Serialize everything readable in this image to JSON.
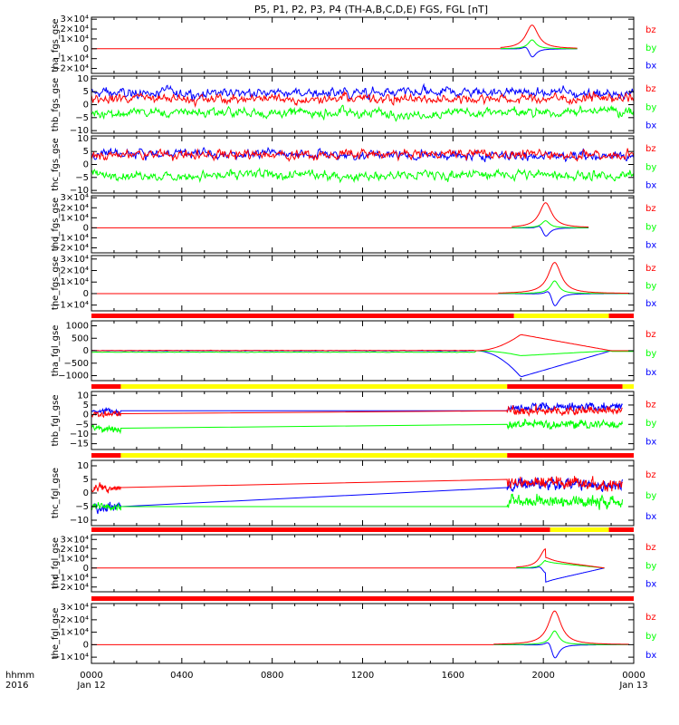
{
  "title": "P5, P1, P2, P3, P4 (TH-A,B,C,D,E) FGS, FGL [nT]",
  "time_axis": {
    "row1_label": "hhmm",
    "row2_label": "2016",
    "ticks": [
      {
        "hour": 0,
        "top": "0000",
        "bottom": "Jan 12"
      },
      {
        "hour": 4,
        "top": "0400",
        "bottom": ""
      },
      {
        "hour": 8,
        "top": "0800",
        "bottom": ""
      },
      {
        "hour": 12,
        "top": "1200",
        "bottom": ""
      },
      {
        "hour": 16,
        "top": "1600",
        "bottom": ""
      },
      {
        "hour": 20,
        "top": "2000",
        "bottom": ""
      },
      {
        "hour": 24,
        "top": "0000",
        "bottom": "Jan 13"
      }
    ]
  },
  "legend": [
    "bz",
    "by",
    "bx"
  ],
  "colors": {
    "bx": "#0000ff",
    "by": "#00ff00",
    "bz": "#ff0000",
    "flag_red": "#ff0000",
    "flag_yellow": "#ffff00",
    "axis": "#000000"
  },
  "chart_data": [
    {
      "type": "line",
      "ylabel": "tha_fgs_gse",
      "ylim": [
        -25000,
        32000
      ],
      "yticks": [
        {
          "v": 30000,
          "t": "3×10⁴"
        },
        {
          "v": 20000,
          "t": "2×10⁴"
        },
        {
          "v": 10000,
          "t": "1×10⁴"
        },
        {
          "v": 0,
          "t": "0"
        },
        {
          "v": -10000,
          "t": "−1×10⁴"
        },
        {
          "v": -20000,
          "t": "−2×10⁴"
        }
      ],
      "data_range": [
        18.1,
        21.5
      ],
      "mode": "spike",
      "peak_hour": 19.5,
      "width": 0.33,
      "peak": {
        "bz": 24000,
        "by": 9000,
        "bx": -10000
      }
    },
    {
      "type": "line",
      "ylabel": "thb_fgs_gse",
      "ylim": [
        -11,
        11
      ],
      "yticks": [
        {
          "v": 10,
          "t": "10"
        },
        {
          "v": 5,
          "t": "5"
        },
        {
          "v": 0,
          "t": "0"
        },
        {
          "v": -5,
          "t": "−5"
        },
        {
          "v": -10,
          "t": "−10"
        }
      ],
      "data_range": [
        0,
        24
      ],
      "mode": "noisy",
      "level": {
        "bz": 2.5,
        "by": -3,
        "bx": 4.5
      }
    },
    {
      "type": "line",
      "ylabel": "thc_fgs_gse",
      "ylim": [
        -11,
        11
      ],
      "yticks": [
        {
          "v": 10,
          "t": "10"
        },
        {
          "v": 5,
          "t": "5"
        },
        {
          "v": 0,
          "t": "0"
        },
        {
          "v": -5,
          "t": "−5"
        },
        {
          "v": -10,
          "t": "−10"
        }
      ],
      "data_range": [
        0,
        24
      ],
      "mode": "noisy",
      "level": {
        "bz": 4,
        "by": -4,
        "bx": 4
      }
    },
    {
      "type": "line",
      "ylabel": "thd_fgs_gse",
      "ylim": [
        -25000,
        32000
      ],
      "yticks": [
        {
          "v": 30000,
          "t": "3×10⁴"
        },
        {
          "v": 20000,
          "t": "2×10⁴"
        },
        {
          "v": 10000,
          "t": "1×10⁴"
        },
        {
          "v": 0,
          "t": "0"
        },
        {
          "v": -10000,
          "t": "−1×10⁴"
        },
        {
          "v": -20000,
          "t": "−2×10⁴"
        }
      ],
      "data_range": [
        18.6,
        22
      ],
      "mode": "spike",
      "peak_hour": 20.1,
      "width": 0.33,
      "peak": {
        "bz": 25000,
        "by": 7000,
        "bx": -10000
      }
    },
    {
      "type": "line",
      "ylabel": "the_fgs_gse",
      "ylim": [
        -15000,
        33000
      ],
      "yticks": [
        {
          "v": 30000,
          "t": "3×10⁴"
        },
        {
          "v": 20000,
          "t": "2×10⁴"
        },
        {
          "v": 10000,
          "t": "1×10⁴"
        },
        {
          "v": 0,
          "t": "0"
        },
        {
          "v": -10000,
          "t": "−1×10⁴"
        }
      ],
      "data_range": [
        18,
        23.8
      ],
      "mode": "spike",
      "peak_hour": 20.5,
      "width": 0.35,
      "peak": {
        "bz": 27000,
        "by": 11000,
        "bx": -13000
      }
    },
    {
      "type": "line",
      "ylabel": "tha_fgl_gse",
      "ylim": [
        -1200,
        1200
      ],
      "yticks": [
        {
          "v": 1000,
          "t": "1000"
        },
        {
          "v": 500,
          "t": "500"
        },
        {
          "v": 0,
          "t": "0"
        },
        {
          "v": -500,
          "t": "−500"
        },
        {
          "v": -1000,
          "t": "−1000"
        }
      ],
      "data_range": [
        0,
        24
      ],
      "mode": "fgl_a"
    },
    {
      "type": "line",
      "ylabel": "thb_fgl_gse",
      "ylim": [
        -18,
        12
      ],
      "yticks": [
        {
          "v": 10,
          "t": "10"
        },
        {
          "v": 5,
          "t": "5"
        },
        {
          "v": 0,
          "t": "0"
        },
        {
          "v": -5,
          "t": "−5"
        },
        {
          "v": -10,
          "t": "−10"
        },
        {
          "v": -15,
          "t": "−15"
        }
      ],
      "data_range": [
        0,
        23.5
      ],
      "mode": "gap",
      "gap": [
        1.3,
        18.4
      ],
      "gap_start": {
        "bz": 0.5,
        "by": -7,
        "bx": 2
      },
      "gap_end": {
        "bz": 2,
        "by": -5,
        "bx": 2
      },
      "level": {
        "bz": 2,
        "by": -5,
        "bx": 4
      }
    },
    {
      "type": "line",
      "ylabel": "thc_fgl_gse",
      "ylim": [
        -12,
        12
      ],
      "yticks": [
        {
          "v": 10,
          "t": "10"
        },
        {
          "v": 5,
          "t": "5"
        },
        {
          "v": 0,
          "t": "0"
        },
        {
          "v": -5,
          "t": "−5"
        },
        {
          "v": -10,
          "t": "−10"
        }
      ],
      "data_range": [
        0,
        23.5
      ],
      "mode": "gap",
      "gap": [
        1.3,
        18.4
      ],
      "gap_start": {
        "bz": 2,
        "by": -5,
        "bx": -5
      },
      "gap_end": {
        "bz": 5,
        "by": -5,
        "bx": 2
      },
      "level": {
        "bz": 4,
        "by": -3,
        "bx": 3
      }
    },
    {
      "type": "line",
      "ylabel": "thd_fgl_gse",
      "ylim": [
        -25000,
        35000
      ],
      "yticks": [
        {
          "v": 30000,
          "t": "3×10⁴"
        },
        {
          "v": 20000,
          "t": "2×10⁴"
        },
        {
          "v": 10000,
          "t": "1×10⁴"
        },
        {
          "v": 0,
          "t": "0"
        },
        {
          "v": -10000,
          "t": "−1×10⁴"
        },
        {
          "v": -20000,
          "t": "−2×10⁴"
        }
      ],
      "data_range": [
        18.8,
        22.7
      ],
      "mode": "spike_ramp",
      "peak_hour": 20.1,
      "width": 0.3,
      "peak": {
        "bz": 20000,
        "by": 8000,
        "bx": -6000
      },
      "ramp_end": 22.7,
      "ramp_at_peak": {
        "bz": 8000,
        "by": 6000,
        "bx": -14000
      }
    },
    {
      "type": "line",
      "ylabel": "the_fgl_gse",
      "ylim": [
        -15000,
        33000
      ],
      "yticks": [
        {
          "v": 30000,
          "t": "3×10⁴"
        },
        {
          "v": 20000,
          "t": "2×10⁴"
        },
        {
          "v": 10000,
          "t": "1×10⁴"
        },
        {
          "v": 0,
          "t": "0"
        },
        {
          "v": -10000,
          "t": "−1×10⁴"
        }
      ],
      "data_range": [
        17.8,
        23.8
      ],
      "mode": "spike",
      "peak_hour": 20.5,
      "width": 0.35,
      "peak": {
        "bz": 27000,
        "by": 11000,
        "bx": -13000
      }
    }
  ],
  "flag_bars": [
    {
      "after_panel": 4,
      "segments": [
        {
          "from": 0,
          "to": 18.7,
          "color": "red"
        },
        {
          "from": 18.7,
          "to": 22.9,
          "color": "yellow"
        },
        {
          "from": 22.9,
          "to": 24,
          "color": "red"
        }
      ]
    },
    {
      "after_panel": 5,
      "segments": [
        {
          "from": 0,
          "to": 1.3,
          "color": "red"
        },
        {
          "from": 1.3,
          "to": 18.4,
          "color": "yellow"
        },
        {
          "from": 18.4,
          "to": 23.5,
          "color": "red"
        },
        {
          "from": 23.5,
          "to": 24,
          "color": "yellow"
        }
      ]
    },
    {
      "after_panel": 6,
      "segments": [
        {
          "from": 0,
          "to": 1.3,
          "color": "red"
        },
        {
          "from": 1.3,
          "to": 18.4,
          "color": "yellow"
        },
        {
          "from": 18.4,
          "to": 24,
          "color": "red"
        }
      ]
    },
    {
      "after_panel": 7,
      "segments": [
        {
          "from": 0,
          "to": 20.3,
          "color": "red"
        },
        {
          "from": 20.3,
          "to": 22.9,
          "color": "yellow"
        },
        {
          "from": 22.9,
          "to": 24,
          "color": "red"
        }
      ]
    },
    {
      "after_panel": 8,
      "segments": [
        {
          "from": 0,
          "to": 24,
          "color": "red"
        }
      ]
    }
  ]
}
